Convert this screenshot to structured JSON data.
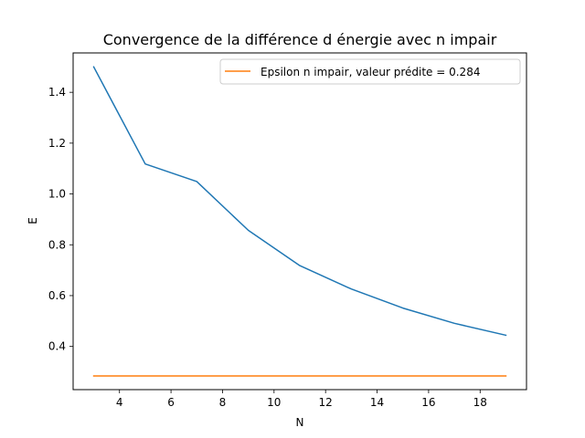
{
  "chart_data": {
    "type": "line",
    "title": "Convergence de la différence d énergie avec n impair",
    "xlabel": "N",
    "ylabel": "E",
    "xlim": [
      2.2,
      19.8
    ],
    "ylim": [
      0.23,
      1.555
    ],
    "xticks": [
      4,
      6,
      8,
      10,
      12,
      14,
      16,
      18
    ],
    "yticks": [
      0.4,
      0.6,
      0.8,
      1.0,
      1.2,
      1.4
    ],
    "ytick_labels": [
      "0.4",
      "0.6",
      "0.8",
      "1.0",
      "1.2",
      "1.4"
    ],
    "grid": false,
    "legend_placement": "upper right",
    "series": [
      {
        "x": [
          3,
          5,
          7,
          9,
          11,
          13,
          15,
          17,
          19
        ],
        "y": [
          1.5,
          1.118,
          1.049,
          0.857,
          0.718,
          0.626,
          0.551,
          0.491,
          0.444
        ],
        "color": "#1f77b4"
      },
      {
        "name": "Epsilon n impair, valeur prédite = 0.284",
        "x": [
          3,
          19
        ],
        "y": [
          0.284,
          0.284
        ],
        "color": "#ff7f0e"
      }
    ]
  }
}
